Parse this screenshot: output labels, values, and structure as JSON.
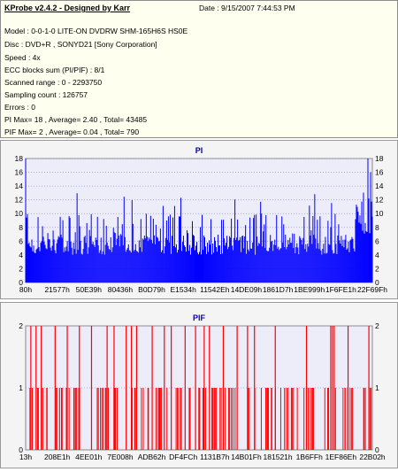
{
  "info": {
    "title": "KProbe v2.4.2 - Designed by Karr",
    "date": "Date : 9/15/2007 7:44:53 PM",
    "lines": [
      "Model : 0-0-1-0 LITE-ON DVDRW SHM-165H6S HS0E",
      "Disc : DVD+R , SONYD21 [Sony Corporation]",
      "Speed : 4x",
      "ECC blocks sum (PI/PIF) : 8/1",
      "Scanned range : 0 - 2293750",
      "Sampling count : 126757",
      "Errors : 0",
      "PI Max= 18 , Average= 2.40 , Total= 43485",
      "PIF Max= 2 , Average= 0.04 , Total= 790"
    ]
  },
  "colors": {
    "pi_bar": "#0000ff",
    "pif_bar": "#ff0000",
    "plot_bg": "#ededfa",
    "grid": "#9999cc",
    "info_bg": "#fffff0"
  },
  "chart_data": [
    {
      "type": "bar",
      "title": "PI",
      "ylim": [
        0,
        18
      ],
      "y_ticks": [
        0,
        2,
        4,
        6,
        8,
        10,
        12,
        14,
        16,
        18
      ],
      "x_tick_labels": [
        "80h",
        "21577h",
        "50E39h",
        "80436h",
        "B0D79h",
        "E1534h",
        "11542Eh",
        "14DE09h",
        "1861D7h",
        "1BE999h",
        "1F6FE1h",
        "22F69Fh"
      ],
      "grid": true,
      "summary": {
        "max": 18,
        "average": 2.4,
        "total": 43485
      },
      "note": "dense bar series; typical values 3-8, spikes up to 18 near end"
    },
    {
      "type": "bar",
      "title": "PIF",
      "ylim": [
        0,
        2
      ],
      "y_ticks": [
        0,
        1,
        2
      ],
      "x_tick_labels": [
        "13h",
        "208E1h",
        "4EE01h",
        "7E008h",
        "ADB62h",
        "DF4FCh",
        "1131B7h",
        "14B01Fh",
        "181521h",
        "1B6FFh",
        "1EF86Eh",
        "22B02h"
      ],
      "grid": true,
      "summary": {
        "max": 2,
        "average": 0.04,
        "total": 790
      },
      "spikes_at_2": [
        0.015,
        0.03,
        0.045,
        0.085,
        0.12,
        0.155,
        0.19,
        0.235,
        0.255,
        0.29,
        0.305,
        0.32,
        0.365,
        0.4,
        0.42,
        0.46,
        0.49,
        0.515,
        0.53,
        0.57,
        0.61,
        0.64,
        0.66,
        0.72,
        0.81,
        0.88,
        0.885,
        0.89,
        0.93,
        0.99
      ],
      "spikes_at_1_density": "frequent"
    }
  ]
}
